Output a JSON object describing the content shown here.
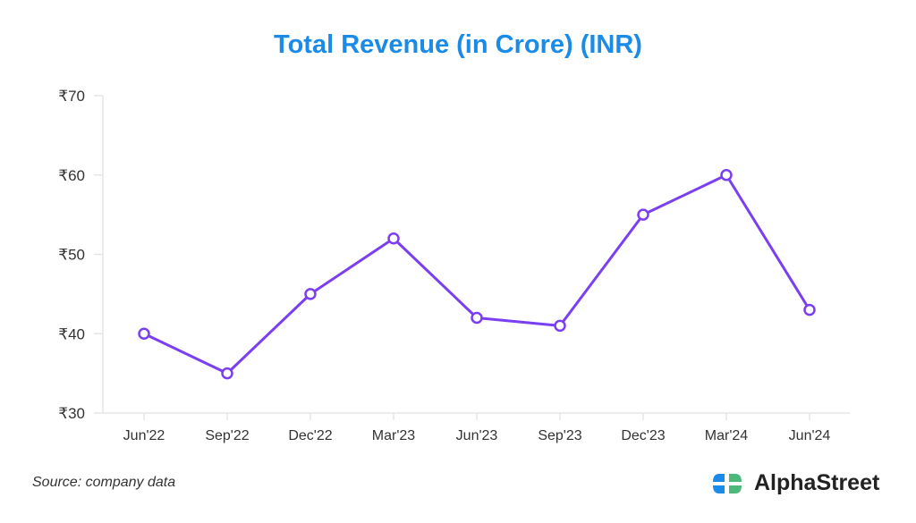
{
  "chart_data": {
    "type": "line",
    "title": "Total Revenue (in Crore) (INR)",
    "xlabel": "",
    "ylabel": "",
    "categories": [
      "Jun'22",
      "Sep'22",
      "Dec'22",
      "Mar'23",
      "Jun'23",
      "Sep'23",
      "Dec'23",
      "Mar'24",
      "Jun'24"
    ],
    "series": [
      {
        "name": "Total Revenue",
        "values": [
          40,
          35,
          45,
          52,
          42,
          41,
          55,
          60,
          43
        ],
        "color": "#7b3ff2"
      }
    ],
    "ylim": [
      30,
      70
    ],
    "yticks": [
      30,
      40,
      50,
      60,
      70
    ],
    "ytick_labels": [
      "₹30",
      "₹40",
      "₹50",
      "₹60",
      "₹70"
    ],
    "grid": false
  },
  "footer": {
    "source": "Source: company data",
    "brand": "AlphaStreet"
  },
  "colors": {
    "title": "#1a8be6",
    "line": "#7b3ff2",
    "logo_blue": "#1a8be6",
    "logo_green": "#4cb87a"
  }
}
